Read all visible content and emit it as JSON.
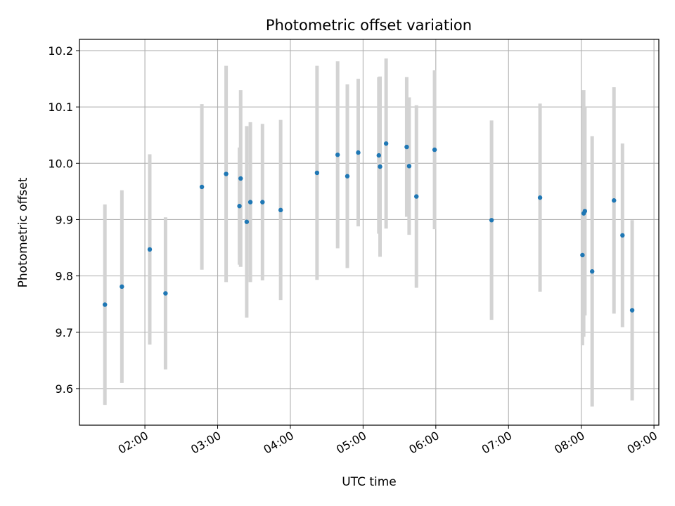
{
  "chart_data": {
    "type": "scatter",
    "title": "Photometric offset variation",
    "xlabel": "UTC time",
    "ylabel": "Photometric offset",
    "x_unit": "time (HH:MM UTC)",
    "xlim": [
      "01:06",
      "09:04"
    ],
    "ylim": [
      9.535,
      10.22
    ],
    "grid": true,
    "x_ticks": [
      "02:00",
      "03:00",
      "04:00",
      "05:00",
      "06:00",
      "07:00",
      "08:00",
      "09:00"
    ],
    "y_ticks": [
      9.6,
      9.7,
      9.8,
      9.9,
      10.0,
      10.1,
      10.2
    ],
    "y_tick_labels": [
      "9.6",
      "9.7",
      "9.8",
      "9.9",
      "10.0",
      "10.1",
      "10.2"
    ],
    "marker_color": "#1f77b4",
    "errorbar_color": "#d3d3d3",
    "points": [
      {
        "x": "01:27",
        "y": 9.749,
        "err": 0.178
      },
      {
        "x": "01:41",
        "y": 9.781,
        "err": 0.171
      },
      {
        "x": "02:04",
        "y": 9.847,
        "err": 0.169
      },
      {
        "x": "02:17",
        "y": 9.769,
        "err": 0.135
      },
      {
        "x": "02:47",
        "y": 9.958,
        "err": 0.147
      },
      {
        "x": "03:07",
        "y": 9.981,
        "err": 0.192
      },
      {
        "x": "03:18",
        "y": 9.924,
        "err": 0.104
      },
      {
        "x": "03:19",
        "y": 9.973,
        "err": 0.157
      },
      {
        "x": "03:24",
        "y": 9.896,
        "err": 0.17
      },
      {
        "x": "03:27",
        "y": 9.931,
        "err": 0.142
      },
      {
        "x": "03:37",
        "y": 9.931,
        "err": 0.139
      },
      {
        "x": "03:52",
        "y": 9.917,
        "err": 0.16
      },
      {
        "x": "04:22",
        "y": 9.983,
        "err": 0.19
      },
      {
        "x": "04:39",
        "y": 10.015,
        "err": 0.166
      },
      {
        "x": "04:47",
        "y": 9.977,
        "err": 0.163
      },
      {
        "x": "04:56",
        "y": 10.019,
        "err": 0.131
      },
      {
        "x": "05:13",
        "y": 10.014,
        "err": 0.139
      },
      {
        "x": "05:14",
        "y": 9.994,
        "err": 0.16
      },
      {
        "x": "05:19",
        "y": 10.035,
        "err": 0.151
      },
      {
        "x": "05:36",
        "y": 10.029,
        "err": 0.124
      },
      {
        "x": "05:38",
        "y": 9.995,
        "err": 0.122
      },
      {
        "x": "05:44",
        "y": 9.941,
        "err": 0.162
      },
      {
        "x": "05:59",
        "y": 10.024,
        "err": 0.141
      },
      {
        "x": "06:46",
        "y": 9.899,
        "err": 0.177
      },
      {
        "x": "07:26",
        "y": 9.939,
        "err": 0.167
      },
      {
        "x": "08:01",
        "y": 9.837,
        "err": 0.16
      },
      {
        "x": "08:02",
        "y": 9.911,
        "err": 0.219
      },
      {
        "x": "08:03",
        "y": 9.915,
        "err": 0.185
      },
      {
        "x": "08:09",
        "y": 9.808,
        "err": 0.24
      },
      {
        "x": "08:27",
        "y": 9.934,
        "err": 0.201
      },
      {
        "x": "08:34",
        "y": 9.872,
        "err": 0.163
      },
      {
        "x": "08:42",
        "y": 9.739,
        "err": 0.16
      }
    ]
  }
}
